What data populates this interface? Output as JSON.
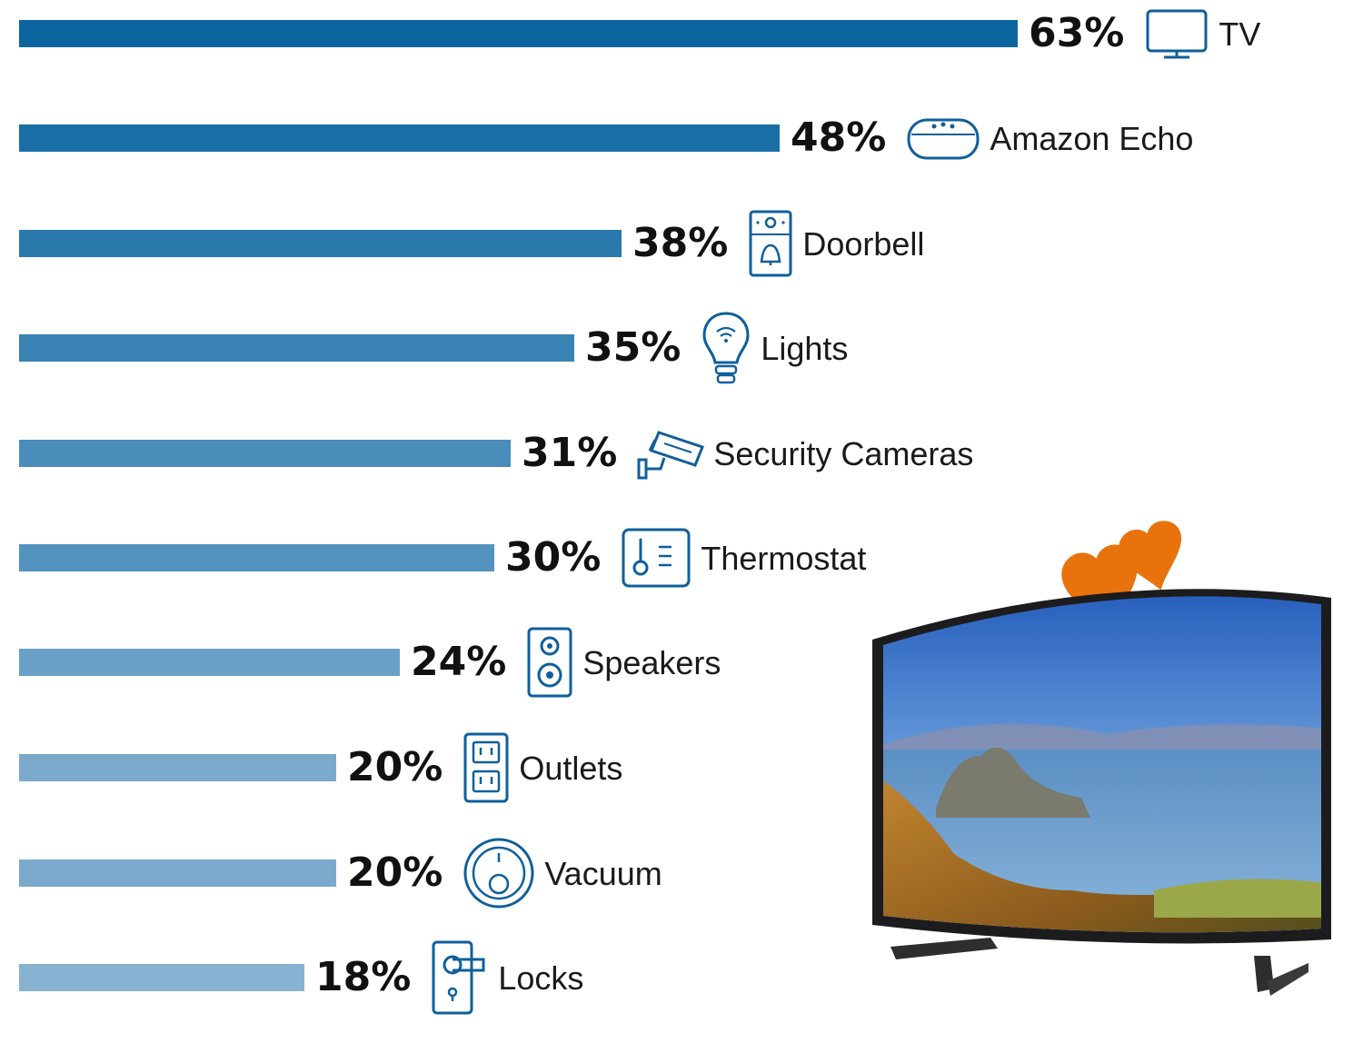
{
  "chart_data": {
    "type": "bar",
    "orientation": "horizontal",
    "title": "",
    "xlabel": "",
    "ylabel": "",
    "xlim": [
      0,
      63
    ],
    "grid": false,
    "legend": "none",
    "value_suffix": "%",
    "categories": [
      "TV",
      "Amazon Echo",
      "Doorbell",
      "Lights",
      "Security Cameras",
      "Thermostat",
      "Speakers",
      "Outlets",
      "Vacuum",
      "Locks"
    ],
    "values": [
      63,
      48,
      38,
      35,
      31,
      30,
      24,
      20,
      20,
      18
    ],
    "value_labels": [
      "63%",
      "48%",
      "38%",
      "35%",
      "31%",
      "30%",
      "24%",
      "20%",
      "20%",
      "18%"
    ],
    "icons": [
      "tv-icon",
      "smart-speaker-icon",
      "doorbell-icon",
      "lightbulb-icon",
      "security-camera-icon",
      "thermostat-icon",
      "speaker-icon",
      "outlet-icon",
      "vacuum-icon",
      "door-lock-icon"
    ],
    "bar_colors": [
      "#0d65a0",
      "#1a6ea6",
      "#2a79ad",
      "#3882b4",
      "#4a8dba",
      "#5493bf",
      "#6aa0c7",
      "#7aa9cc",
      "#7aa9cc",
      "#88b2d2"
    ]
  },
  "illustration": {
    "icon": "curved-tv-icon",
    "accent_color": "#e8730c"
  }
}
